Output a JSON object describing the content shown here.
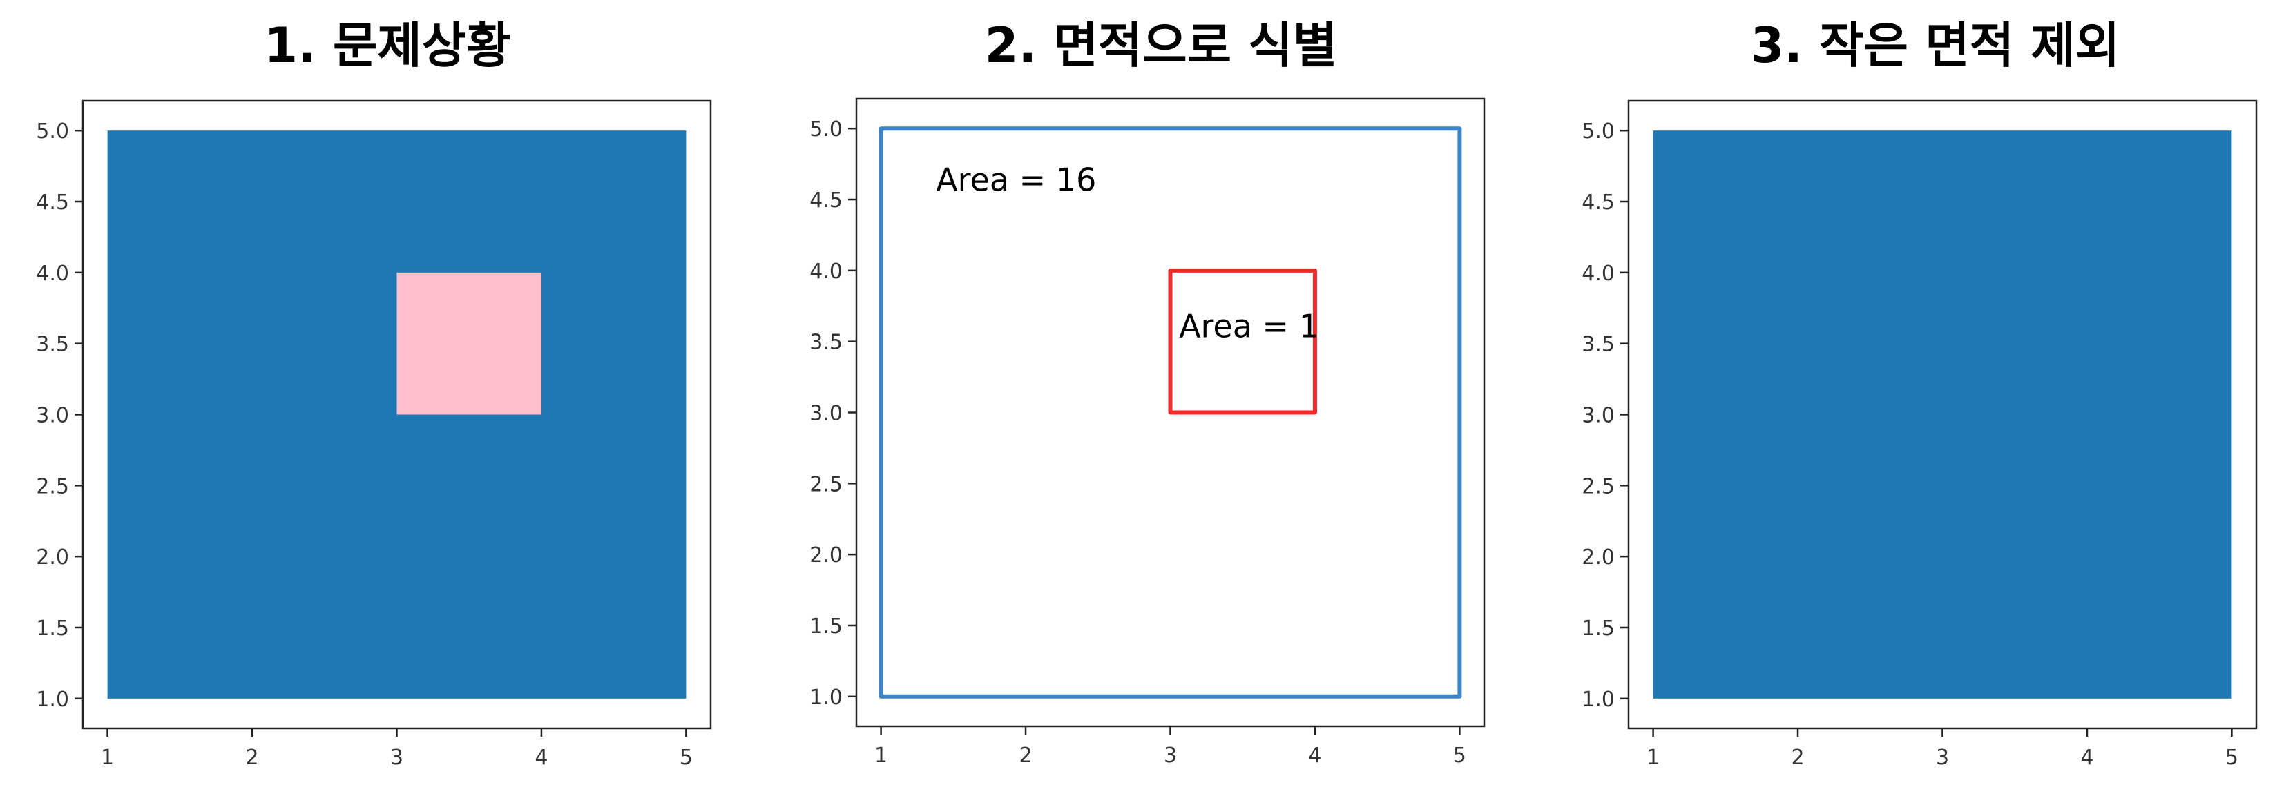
{
  "chart_data": [
    {
      "type": "rectangles",
      "title": "1. 문제상황",
      "xlim": [
        0.83,
        5.17
      ],
      "ylim": [
        0.79,
        5.21
      ],
      "xticks": [
        "1",
        "2",
        "3",
        "4",
        "5"
      ],
      "yticks": [
        "1.0",
        "1.5",
        "2.0",
        "2.5",
        "3.0",
        "3.5",
        "4.0",
        "4.5",
        "5.0"
      ],
      "shapes": [
        {
          "x0": 1,
          "y0": 1,
          "x1": 5,
          "y1": 5,
          "fill": "#1f77b4",
          "stroke": "none"
        },
        {
          "x0": 3,
          "y0": 3,
          "x1": 4,
          "y1": 4,
          "fill": "#ffc0cb",
          "stroke": "none"
        }
      ],
      "annotations": []
    },
    {
      "type": "rectangles",
      "title": "2. 면적으로 식별",
      "xlim": [
        0.83,
        5.17
      ],
      "ylim": [
        0.79,
        5.21
      ],
      "xticks": [
        "1",
        "2",
        "3",
        "4",
        "5"
      ],
      "yticks": [
        "1.0",
        "1.5",
        "2.0",
        "2.5",
        "3.0",
        "3.5",
        "4.0",
        "4.5",
        "5.0"
      ],
      "shapes": [
        {
          "x0": 1,
          "y0": 1,
          "x1": 5,
          "y1": 5,
          "fill": "none",
          "stroke": "#3d85c6"
        },
        {
          "x0": 3,
          "y0": 3,
          "x1": 4,
          "y1": 4,
          "fill": "none",
          "stroke": "#ee2a2a"
        }
      ],
      "annotations": [
        {
          "text": "Area = 16",
          "x": 1.38,
          "y": 4.56
        },
        {
          "text": "Area = 1",
          "x": 3.06,
          "y": 3.53
        }
      ]
    },
    {
      "type": "rectangles",
      "title": "3. 작은 면적 제외",
      "xlim": [
        0.83,
        5.17
      ],
      "ylim": [
        0.79,
        5.21
      ],
      "xticks": [
        "1",
        "2",
        "3",
        "4",
        "5"
      ],
      "yticks": [
        "1.0",
        "1.5",
        "2.0",
        "2.5",
        "3.0",
        "3.5",
        "4.0",
        "4.5",
        "5.0"
      ],
      "shapes": [
        {
          "x0": 1,
          "y0": 1,
          "x1": 5,
          "y1": 5,
          "fill": "#1f77b4",
          "stroke": "none"
        }
      ],
      "annotations": []
    }
  ]
}
